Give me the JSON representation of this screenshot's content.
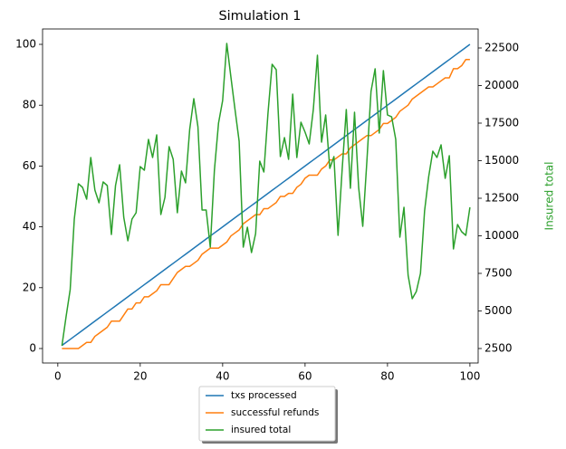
{
  "chart_data": {
    "type": "line",
    "title": "Simulation 1",
    "y2label": "Insured total",
    "y2label_color": "#2ca02c",
    "x": [
      1,
      2,
      3,
      4,
      5,
      6,
      7,
      8,
      9,
      10,
      11,
      12,
      13,
      14,
      15,
      16,
      17,
      18,
      19,
      20,
      21,
      22,
      23,
      24,
      25,
      26,
      27,
      28,
      29,
      30,
      31,
      32,
      33,
      34,
      35,
      36,
      37,
      38,
      39,
      40,
      41,
      42,
      43,
      44,
      45,
      46,
      47,
      48,
      49,
      50,
      51,
      52,
      53,
      54,
      55,
      56,
      57,
      58,
      59,
      60,
      61,
      62,
      63,
      64,
      65,
      66,
      67,
      68,
      69,
      70,
      71,
      72,
      73,
      74,
      75,
      76,
      77,
      78,
      79,
      80,
      81,
      82,
      83,
      84,
      85,
      86,
      87,
      88,
      89,
      90,
      91,
      92,
      93,
      94,
      95,
      96,
      97,
      98,
      99,
      100
    ],
    "series": [
      {
        "name": "txs processed",
        "color": "#1f77b4",
        "values": [
          1,
          2,
          3,
          4,
          5,
          6,
          7,
          8,
          9,
          10,
          11,
          12,
          13,
          14,
          15,
          16,
          17,
          18,
          19,
          20,
          21,
          22,
          23,
          24,
          25,
          26,
          27,
          28,
          29,
          30,
          31,
          32,
          33,
          34,
          35,
          36,
          37,
          38,
          39,
          40,
          41,
          42,
          43,
          44,
          45,
          46,
          47,
          48,
          49,
          50,
          51,
          52,
          53,
          54,
          55,
          56,
          57,
          58,
          59,
          60,
          61,
          62,
          63,
          64,
          65,
          66,
          67,
          68,
          69,
          70,
          71,
          72,
          73,
          74,
          75,
          76,
          77,
          78,
          79,
          80,
          81,
          82,
          83,
          84,
          85,
          86,
          87,
          88,
          89,
          90,
          91,
          92,
          93,
          94,
          95,
          96,
          97,
          98,
          99,
          100
        ]
      },
      {
        "name": "successful refunds",
        "color": "#ff7f0e",
        "values": [
          0,
          0,
          0,
          0,
          0,
          1,
          2,
          2,
          4,
          5,
          6,
          7,
          9,
          9,
          9,
          11,
          13,
          13,
          15,
          15,
          17,
          17,
          18,
          19,
          21,
          21,
          21,
          23,
          25,
          26,
          27,
          27,
          28,
          29,
          31,
          32,
          33,
          33,
          33,
          34,
          35,
          37,
          38,
          39,
          41,
          42,
          43,
          44,
          44,
          46,
          46,
          47,
          48,
          50,
          50,
          51,
          51,
          53,
          54,
          56,
          57,
          57,
          57,
          59,
          60,
          62,
          62,
          63,
          64,
          64,
          66,
          67,
          68,
          69,
          70,
          70,
          71,
          72,
          74,
          74,
          75,
          76,
          78,
          79,
          80,
          82,
          83,
          84,
          85,
          86,
          86,
          87,
          88,
          89,
          89,
          92,
          92,
          93,
          95,
          95
        ]
      },
      {
        "name": "insured total",
        "color": "#2ca02c",
        "axis": "y2",
        "values": [
          2681,
          4608,
          6416,
          11114,
          13464,
          13223,
          12440,
          15211,
          13042,
          12199,
          13584,
          13343,
          10090,
          13343,
          14729,
          11235,
          9669,
          11114,
          11536,
          14608,
          14367,
          16415,
          15211,
          16717,
          11416,
          12560,
          15933,
          15090,
          11536,
          14307,
          13524,
          17078,
          19126,
          17259,
          11717,
          11717,
          9247,
          14367,
          17500,
          19006,
          22801,
          20572,
          18403,
          16295,
          9247,
          10572,
          8885,
          10150,
          14970,
          14247,
          18162,
          21415,
          21054,
          15271,
          16536,
          15090,
          19427,
          15211,
          17560,
          16897,
          16114,
          18403,
          22018,
          16235,
          18042,
          14488,
          15271,
          10030,
          14428,
          18403,
          13162,
          18223,
          13223,
          10632,
          14970,
          19608,
          21114,
          16837,
          20994,
          18042,
          17921,
          16415,
          9910,
          11898,
          7379,
          5813,
          6295,
          7500,
          11656,
          13946,
          15632,
          15211,
          16054,
          13825,
          15331,
          9127,
          10753,
          10271,
          10030,
          11898
        ]
      }
    ],
    "xlim": [
      -3.7,
      102
    ],
    "xticks": [
      0,
      20,
      40,
      60,
      80,
      100
    ],
    "ylim": [
      -4.76,
      105.06
    ],
    "yticks": [
      0,
      20,
      40,
      60,
      80,
      100
    ],
    "y2lim": [
      1536,
      23765
    ],
    "y2ticks": [
      2500,
      5000,
      7500,
      10000,
      12500,
      15000,
      17500,
      20000,
      22500
    ],
    "legend": "below"
  }
}
